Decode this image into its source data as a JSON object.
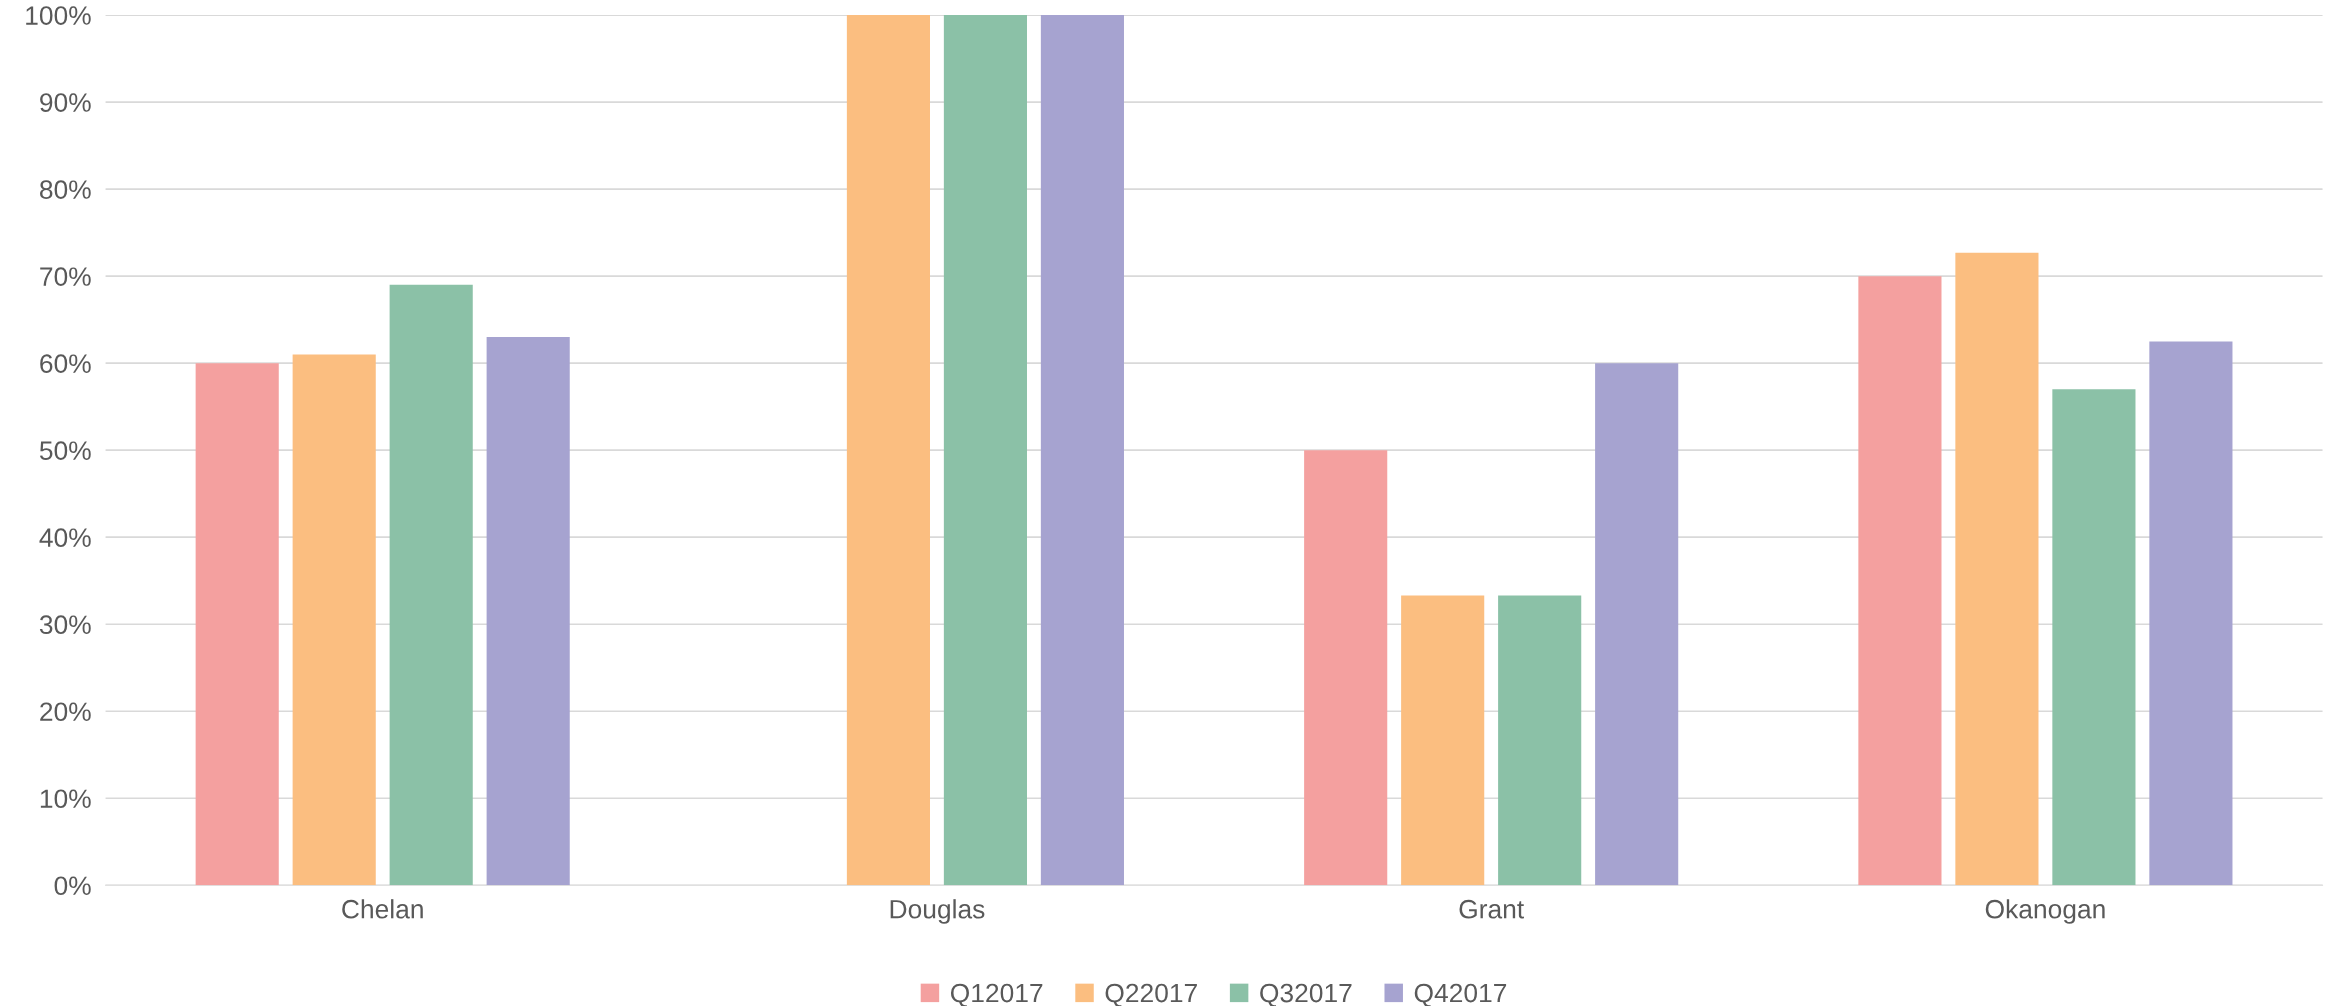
{
  "chart_data": {
    "type": "bar",
    "categories": [
      "Chelan",
      "Douglas",
      "Grant",
      "Okanogan"
    ],
    "series": [
      {
        "name": "Q12017",
        "color": "#f4a09f",
        "values": [
          60,
          null,
          50,
          70
        ]
      },
      {
        "name": "Q22017",
        "color": "#fbbe80",
        "values": [
          61,
          100,
          33.3,
          72.7
        ]
      },
      {
        "name": "Q32017",
        "color": "#8bc1a7",
        "values": [
          69,
          100,
          33.3,
          57
        ]
      },
      {
        "name": "Q42017",
        "color": "#a6a3d0",
        "values": [
          63,
          100,
          60,
          62.5
        ]
      }
    ],
    "ylim": [
      0,
      100
    ],
    "yticks": [
      {
        "value": 0,
        "label": "0%"
      },
      {
        "value": 10,
        "label": "10%"
      },
      {
        "value": 20,
        "label": "20%"
      },
      {
        "value": 30,
        "label": "30%"
      },
      {
        "value": 40,
        "label": "40%"
      },
      {
        "value": 50,
        "label": "50%"
      },
      {
        "value": 60,
        "label": "60%"
      },
      {
        "value": 70,
        "label": "70%"
      },
      {
        "value": 80,
        "label": "80%"
      },
      {
        "value": 90,
        "label": "90%"
      },
      {
        "value": 100,
        "label": "100%"
      }
    ],
    "grid": "y",
    "legend": "bottom"
  }
}
